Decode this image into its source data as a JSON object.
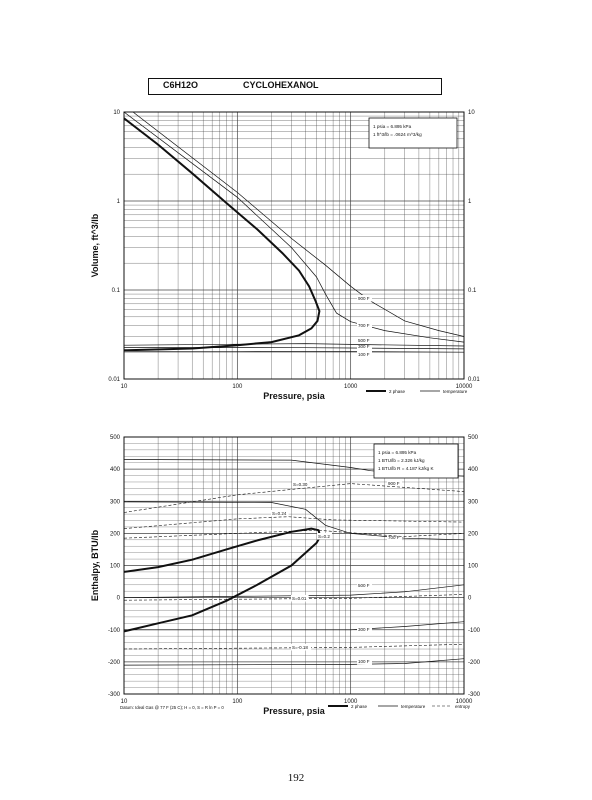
{
  "header": {
    "formula": "C6H12O",
    "name": "CYCLOHEXANOL"
  },
  "page_number": "192",
  "chart_data": [
    {
      "type": "line",
      "xlabel": "Pressure,  psia",
      "ylabel": "Volume, ft^3/lb",
      "x_scale": "log",
      "y_scale": "log",
      "xlim": [
        10,
        10000
      ],
      "ylim": [
        0.01,
        10
      ],
      "x_ticks": [
        "10",
        "100",
        "1000",
        "10000"
      ],
      "y_ticks": [
        "0.01",
        "0.1",
        "1",
        "10"
      ],
      "y_ticks_right": [
        "0.01",
        "0.1",
        "1",
        "10"
      ],
      "grid": true,
      "notes": [
        "1 psia = 6.895 kPa",
        "1 ft^3/lb = .0624 m^3/kg"
      ],
      "legend": [
        "2 phase",
        "temperature"
      ],
      "series": [
        {
          "kind": "two-phase",
          "label": "",
          "points": [
            [
              10,
              8.5
            ],
            [
              20,
              4.3
            ],
            [
              40,
              2.05
            ],
            [
              80,
              0.95
            ],
            [
              150,
              0.48
            ],
            [
              250,
              0.26
            ],
            [
              350,
              0.165
            ],
            [
              430,
              0.11
            ],
            [
              490,
              0.075
            ],
            [
              530,
              0.058
            ],
            [
              510,
              0.045
            ],
            [
              450,
              0.037
            ],
            [
              350,
              0.031
            ],
            [
              200,
              0.026
            ],
            [
              100,
              0.024
            ],
            [
              40,
              0.022
            ],
            [
              10,
              0.021
            ]
          ]
        },
        {
          "kind": "temperature",
          "label": "100 F",
          "points": [
            [
              10,
              0.0205
            ],
            [
              100,
              0.0205
            ],
            [
              1000,
              0.0203
            ],
            [
              10000,
              0.02
            ]
          ]
        },
        {
          "kind": "temperature",
          "label": "300 F",
          "points": [
            [
              10,
              0.0226
            ],
            [
              400,
              0.0225
            ],
            [
              1000,
              0.0223
            ],
            [
              10000,
              0.0218
            ]
          ]
        },
        {
          "kind": "temperature",
          "label": "500 F",
          "points": [
            [
              10,
              0.024
            ],
            [
              400,
              0.025
            ],
            [
              1000,
              0.0245
            ],
            [
              10000,
              0.0235
            ]
          ]
        },
        {
          "kind": "temperature",
          "label": "700 F",
          "points": [
            [
              10,
              10
            ],
            [
              100,
              1.1
            ],
            [
              300,
              0.3
            ],
            [
              500,
              0.14
            ],
            [
              600,
              0.09
            ],
            [
              750,
              0.055
            ],
            [
              1000,
              0.044
            ],
            [
              2000,
              0.035
            ],
            [
              5000,
              0.029
            ],
            [
              10000,
              0.026
            ]
          ]
        },
        {
          "kind": "temperature",
          "label": "900 F",
          "points": [
            [
              12,
              10
            ],
            [
              100,
              1.25
            ],
            [
              300,
              0.38
            ],
            [
              600,
              0.19
            ],
            [
              1000,
              0.11
            ],
            [
              1500,
              0.075
            ],
            [
              3000,
              0.045
            ],
            [
              6000,
              0.035
            ],
            [
              10000,
              0.03
            ]
          ]
        }
      ]
    },
    {
      "type": "line",
      "xlabel": "Pressure,  psia",
      "ylabel": "Enthalpy, BTU/lb",
      "x_scale": "log",
      "xlim": [
        10,
        10000
      ],
      "ylim": [
        -300,
        500
      ],
      "x_ticks": [
        "10",
        "100",
        "1000",
        "10000"
      ],
      "y_ticks": [
        "-300",
        "-200",
        "-100",
        "0",
        "100",
        "200",
        "300",
        "400",
        "500"
      ],
      "y_ticks_right": [
        "-300",
        "-200",
        "-100",
        "0",
        "100",
        "200",
        "300",
        "400",
        "500"
      ],
      "grid": true,
      "notes": [
        "1 psia = 6.895 kPa",
        "1 BTU/lb = 2.326 kJ/kg",
        "1 BTU/lb R = 4.187 kJ/kg K"
      ],
      "legend": [
        "2 phase",
        "temperature",
        "entropy"
      ],
      "datum": "Datum: Ideal Gas @ 77 F (25 C);  H = 0,  S = R ln P = 0",
      "series": [
        {
          "kind": "two-phase",
          "label": "",
          "points": [
            [
              10,
              80
            ],
            [
              20,
              95
            ],
            [
              40,
              118
            ],
            [
              80,
              150
            ],
            [
              150,
              178
            ],
            [
              300,
              205
            ],
            [
              450,
              215
            ],
            [
              520,
              210
            ],
            [
              540,
              190
            ],
            [
              500,
              170
            ],
            [
              300,
              100
            ],
            [
              150,
              40
            ],
            [
              80,
              -10
            ],
            [
              40,
              -55
            ],
            [
              20,
              -80
            ],
            [
              10,
              -105
            ]
          ]
        },
        {
          "kind": "temperature",
          "label": "900 F",
          "points": [
            [
              10,
              430
            ],
            [
              300,
              428
            ],
            [
              1000,
              405
            ],
            [
              1500,
              395
            ],
            [
              3000,
              385
            ],
            [
              10000,
              378
            ]
          ]
        },
        {
          "kind": "temperature",
          "label": "700 F",
          "points": [
            [
              10,
              298
            ],
            [
              200,
              296
            ],
            [
              400,
              275
            ],
            [
              600,
              225
            ],
            [
              1000,
              200
            ],
            [
              3000,
              185
            ],
            [
              10000,
              180
            ]
          ]
        },
        {
          "kind": "temperature",
          "label": "500 F",
          "points": [
            [
              10,
              0
            ],
            [
              1000,
              8
            ],
            [
              3000,
              18
            ],
            [
              10000,
              40
            ]
          ]
        },
        {
          "kind": "temperature",
          "label": "300 F",
          "points": [
            [
              10,
              -100
            ],
            [
              1000,
              -100
            ],
            [
              3000,
              -90
            ],
            [
              10000,
              -75
            ]
          ]
        },
        {
          "kind": "temperature",
          "label": "100 F",
          "points": [
            [
              10,
              -210
            ],
            [
              1000,
              -208
            ],
            [
              3000,
              -205
            ],
            [
              10000,
              -190
            ]
          ]
        },
        {
          "kind": "entropy",
          "label": "S=0.30",
          "points": [
            [
              10,
              265
            ],
            [
              100,
              320
            ],
            [
              1000,
              355
            ],
            [
              10000,
              330
            ]
          ]
        },
        {
          "kind": "entropy",
          "label": "S=0.24",
          "points": [
            [
              10,
              215
            ],
            [
              100,
              245
            ],
            [
              280,
              252
            ],
            [
              700,
              242
            ],
            [
              10000,
              235
            ]
          ]
        },
        {
          "kind": "entropy",
          "label": "S=0.2",
          "points": [
            [
              10,
              185
            ],
            [
              100,
              200
            ],
            [
              500,
              210
            ],
            [
              3000,
              190
            ],
            [
              10000,
              200
            ]
          ]
        },
        {
          "kind": "entropy",
          "label": "S=0.01",
          "points": [
            [
              10,
              -8
            ],
            [
              1000,
              -2
            ],
            [
              10000,
              10
            ]
          ]
        },
        {
          "kind": "entropy",
          "label": "S=-0.18",
          "points": [
            [
              10,
              -160
            ],
            [
              1000,
              -155
            ],
            [
              10000,
              -145
            ]
          ]
        }
      ]
    }
  ]
}
